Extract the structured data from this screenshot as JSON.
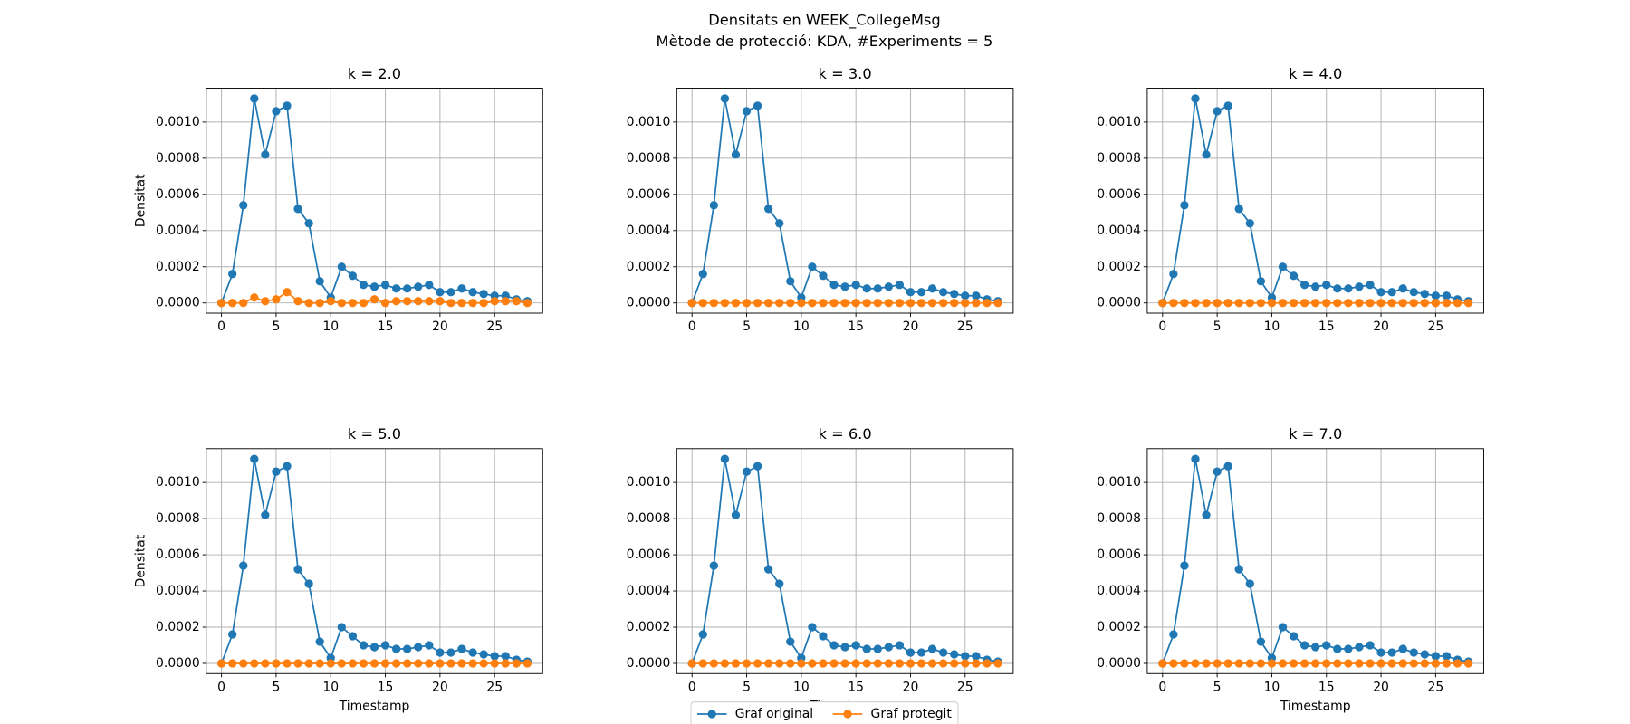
{
  "figure_title": "Densitats en WEEK_CollegeMsg",
  "figure_subtitle": "Mètode de protecció: KDA, #Experiments = 5",
  "legend_loc": "lower center",
  "chart_data": [
    {
      "type": "line",
      "title": "k = 2.0",
      "ylabel": "Densitat",
      "x": [
        0,
        1,
        2,
        3,
        4,
        5,
        6,
        7,
        8,
        9,
        10,
        11,
        12,
        13,
        14,
        15,
        16,
        17,
        18,
        19,
        20,
        21,
        22,
        23,
        24,
        25,
        26,
        27,
        28
      ],
      "series": [
        {
          "name": "Graf original",
          "color": "#1f77b4",
          "values": [
            0,
            0.00016,
            0.00054,
            0.00113,
            0.00082,
            0.00106,
            0.00109,
            0.00052,
            0.00044,
            0.00012,
            3e-05,
            0.0002,
            0.00015,
            0.0001,
            9e-05,
            0.0001,
            8e-05,
            8e-05,
            9e-05,
            0.0001,
            6e-05,
            6e-05,
            8e-05,
            6e-05,
            5e-05,
            4e-05,
            4e-05,
            2e-05,
            1e-05
          ]
        },
        {
          "name": "Graf protegit",
          "color": "#ff7f0e",
          "values": [
            0,
            0,
            0,
            3e-05,
            1e-05,
            2e-05,
            6e-05,
            1e-05,
            0,
            0,
            1e-05,
            0,
            0,
            0,
            2e-05,
            0,
            1e-05,
            1e-05,
            1e-05,
            1e-05,
            1e-05,
            0,
            0,
            0,
            0,
            1e-05,
            1e-05,
            1e-05,
            0
          ]
        }
      ],
      "xlim": [
        -1.4,
        29.4
      ],
      "ylim": [
        -5.65e-05,
        0.001187
      ],
      "xticks": [
        0,
        5,
        10,
        15,
        20,
        25
      ],
      "yticks": [
        {
          "value": 0,
          "label": "0.0000"
        },
        {
          "value": 0.0002,
          "label": "0.0002"
        },
        {
          "value": 0.0004,
          "label": "0.0004"
        },
        {
          "value": 0.0006,
          "label": "0.0006"
        },
        {
          "value": 0.0008,
          "label": "0.0008"
        },
        {
          "value": 0.001,
          "label": "0.0010"
        }
      ],
      "grid": true
    },
    {
      "type": "line",
      "title": "k = 3.0",
      "x": [
        0,
        1,
        2,
        3,
        4,
        5,
        6,
        7,
        8,
        9,
        10,
        11,
        12,
        13,
        14,
        15,
        16,
        17,
        18,
        19,
        20,
        21,
        22,
        23,
        24,
        25,
        26,
        27,
        28
      ],
      "series": [
        {
          "name": "Graf original",
          "color": "#1f77b4",
          "values": [
            0,
            0.00016,
            0.00054,
            0.00113,
            0.00082,
            0.00106,
            0.00109,
            0.00052,
            0.00044,
            0.00012,
            3e-05,
            0.0002,
            0.00015,
            0.0001,
            9e-05,
            0.0001,
            8e-05,
            8e-05,
            9e-05,
            0.0001,
            6e-05,
            6e-05,
            8e-05,
            6e-05,
            5e-05,
            4e-05,
            4e-05,
            2e-05,
            1e-05
          ]
        },
        {
          "name": "Graf protegit",
          "color": "#ff7f0e",
          "values": [
            0,
            0,
            0,
            0,
            0,
            0,
            0,
            0,
            0,
            0,
            0,
            0,
            0,
            0,
            0,
            0,
            0,
            0,
            0,
            0,
            0,
            0,
            0,
            0,
            0,
            0,
            0,
            0,
            0
          ]
        }
      ],
      "xlim": [
        -1.4,
        29.4
      ],
      "ylim": [
        -5.65e-05,
        0.001187
      ],
      "xticks": [
        0,
        5,
        10,
        15,
        20,
        25
      ],
      "yticks": [
        {
          "value": 0,
          "label": "0.0000"
        },
        {
          "value": 0.0002,
          "label": "0.0002"
        },
        {
          "value": 0.0004,
          "label": "0.0004"
        },
        {
          "value": 0.0006,
          "label": "0.0006"
        },
        {
          "value": 0.0008,
          "label": "0.0008"
        },
        {
          "value": 0.001,
          "label": "0.0010"
        }
      ],
      "grid": true
    },
    {
      "type": "line",
      "title": "k = 4.0",
      "x": [
        0,
        1,
        2,
        3,
        4,
        5,
        6,
        7,
        8,
        9,
        10,
        11,
        12,
        13,
        14,
        15,
        16,
        17,
        18,
        19,
        20,
        21,
        22,
        23,
        24,
        25,
        26,
        27,
        28
      ],
      "series": [
        {
          "name": "Graf original",
          "color": "#1f77b4",
          "values": [
            0,
            0.00016,
            0.00054,
            0.00113,
            0.00082,
            0.00106,
            0.00109,
            0.00052,
            0.00044,
            0.00012,
            3e-05,
            0.0002,
            0.00015,
            0.0001,
            9e-05,
            0.0001,
            8e-05,
            8e-05,
            9e-05,
            0.0001,
            6e-05,
            6e-05,
            8e-05,
            6e-05,
            5e-05,
            4e-05,
            4e-05,
            2e-05,
            1e-05
          ]
        },
        {
          "name": "Graf protegit",
          "color": "#ff7f0e",
          "values": [
            0,
            0,
            0,
            0,
            0,
            0,
            0,
            0,
            0,
            0,
            0,
            0,
            0,
            0,
            0,
            0,
            0,
            0,
            0,
            0,
            0,
            0,
            0,
            0,
            0,
            0,
            0,
            0,
            0
          ]
        }
      ],
      "xlim": [
        -1.4,
        29.4
      ],
      "ylim": [
        -5.65e-05,
        0.001187
      ],
      "xticks": [
        0,
        5,
        10,
        15,
        20,
        25
      ],
      "yticks": [
        {
          "value": 0,
          "label": "0.0000"
        },
        {
          "value": 0.0002,
          "label": "0.0002"
        },
        {
          "value": 0.0004,
          "label": "0.0004"
        },
        {
          "value": 0.0006,
          "label": "0.0006"
        },
        {
          "value": 0.0008,
          "label": "0.0008"
        },
        {
          "value": 0.001,
          "label": "0.0010"
        }
      ],
      "grid": true
    },
    {
      "type": "line",
      "title": "k = 5.0",
      "ylabel": "Densitat",
      "xlabel": "Timestamp",
      "x": [
        0,
        1,
        2,
        3,
        4,
        5,
        6,
        7,
        8,
        9,
        10,
        11,
        12,
        13,
        14,
        15,
        16,
        17,
        18,
        19,
        20,
        21,
        22,
        23,
        24,
        25,
        26,
        27,
        28
      ],
      "series": [
        {
          "name": "Graf original",
          "color": "#1f77b4",
          "values": [
            0,
            0.00016,
            0.00054,
            0.00113,
            0.00082,
            0.00106,
            0.00109,
            0.00052,
            0.00044,
            0.00012,
            3e-05,
            0.0002,
            0.00015,
            0.0001,
            9e-05,
            0.0001,
            8e-05,
            8e-05,
            9e-05,
            0.0001,
            6e-05,
            6e-05,
            8e-05,
            6e-05,
            5e-05,
            4e-05,
            4e-05,
            2e-05,
            1e-05
          ]
        },
        {
          "name": "Graf protegit",
          "color": "#ff7f0e",
          "values": [
            0,
            0,
            0,
            0,
            0,
            0,
            0,
            0,
            0,
            0,
            0,
            0,
            0,
            0,
            0,
            0,
            0,
            0,
            0,
            0,
            0,
            0,
            0,
            0,
            0,
            0,
            0,
            0,
            0
          ]
        }
      ],
      "xlim": [
        -1.4,
        29.4
      ],
      "ylim": [
        -5.65e-05,
        0.001187
      ],
      "xticks": [
        0,
        5,
        10,
        15,
        20,
        25
      ],
      "yticks": [
        {
          "value": 0,
          "label": "0.0000"
        },
        {
          "value": 0.0002,
          "label": "0.0002"
        },
        {
          "value": 0.0004,
          "label": "0.0004"
        },
        {
          "value": 0.0006,
          "label": "0.0006"
        },
        {
          "value": 0.0008,
          "label": "0.0008"
        },
        {
          "value": 0.001,
          "label": "0.0010"
        }
      ],
      "grid": true
    },
    {
      "type": "line",
      "title": "k = 6.0",
      "xlabel": "Timestamp",
      "x": [
        0,
        1,
        2,
        3,
        4,
        5,
        6,
        7,
        8,
        9,
        10,
        11,
        12,
        13,
        14,
        15,
        16,
        17,
        18,
        19,
        20,
        21,
        22,
        23,
        24,
        25,
        26,
        27,
        28
      ],
      "series": [
        {
          "name": "Graf original",
          "color": "#1f77b4",
          "values": [
            0,
            0.00016,
            0.00054,
            0.00113,
            0.00082,
            0.00106,
            0.00109,
            0.00052,
            0.00044,
            0.00012,
            3e-05,
            0.0002,
            0.00015,
            0.0001,
            9e-05,
            0.0001,
            8e-05,
            8e-05,
            9e-05,
            0.0001,
            6e-05,
            6e-05,
            8e-05,
            6e-05,
            5e-05,
            4e-05,
            4e-05,
            2e-05,
            1e-05
          ]
        },
        {
          "name": "Graf protegit",
          "color": "#ff7f0e",
          "values": [
            0,
            0,
            0,
            0,
            0,
            0,
            0,
            0,
            0,
            0,
            0,
            0,
            0,
            0,
            0,
            0,
            0,
            0,
            0,
            0,
            0,
            0,
            0,
            0,
            0,
            0,
            0,
            0,
            0
          ]
        }
      ],
      "xlim": [
        -1.4,
        29.4
      ],
      "ylim": [
        -5.65e-05,
        0.001187
      ],
      "xticks": [
        0,
        5,
        10,
        15,
        20,
        25
      ],
      "yticks": [
        {
          "value": 0,
          "label": "0.0000"
        },
        {
          "value": 0.0002,
          "label": "0.0002"
        },
        {
          "value": 0.0004,
          "label": "0.0004"
        },
        {
          "value": 0.0006,
          "label": "0.0006"
        },
        {
          "value": 0.0008,
          "label": "0.0008"
        },
        {
          "value": 0.001,
          "label": "0.0010"
        }
      ],
      "grid": true
    },
    {
      "type": "line",
      "title": "k = 7.0",
      "xlabel": "Timestamp",
      "x": [
        0,
        1,
        2,
        3,
        4,
        5,
        6,
        7,
        8,
        9,
        10,
        11,
        12,
        13,
        14,
        15,
        16,
        17,
        18,
        19,
        20,
        21,
        22,
        23,
        24,
        25,
        26,
        27,
        28
      ],
      "series": [
        {
          "name": "Graf original",
          "color": "#1f77b4",
          "values": [
            0,
            0.00016,
            0.00054,
            0.00113,
            0.00082,
            0.00106,
            0.00109,
            0.00052,
            0.00044,
            0.00012,
            3e-05,
            0.0002,
            0.00015,
            0.0001,
            9e-05,
            0.0001,
            8e-05,
            8e-05,
            9e-05,
            0.0001,
            6e-05,
            6e-05,
            8e-05,
            6e-05,
            5e-05,
            4e-05,
            4e-05,
            2e-05,
            1e-05
          ]
        },
        {
          "name": "Graf protegit",
          "color": "#ff7f0e",
          "values": [
            0,
            0,
            0,
            0,
            0,
            0,
            0,
            0,
            0,
            0,
            0,
            0,
            0,
            0,
            0,
            0,
            0,
            0,
            0,
            0,
            0,
            0,
            0,
            0,
            0,
            0,
            0,
            0,
            0
          ]
        }
      ],
      "xlim": [
        -1.4,
        29.4
      ],
      "ylim": [
        -5.65e-05,
        0.001187
      ],
      "xticks": [
        0,
        5,
        10,
        15,
        20,
        25
      ],
      "yticks": [
        {
          "value": 0,
          "label": "0.0000"
        },
        {
          "value": 0.0002,
          "label": "0.0002"
        },
        {
          "value": 0.0004,
          "label": "0.0004"
        },
        {
          "value": 0.0006,
          "label": "0.0006"
        },
        {
          "value": 0.0008,
          "label": "0.0008"
        },
        {
          "value": 0.001,
          "label": "0.0010"
        }
      ],
      "grid": true
    }
  ]
}
